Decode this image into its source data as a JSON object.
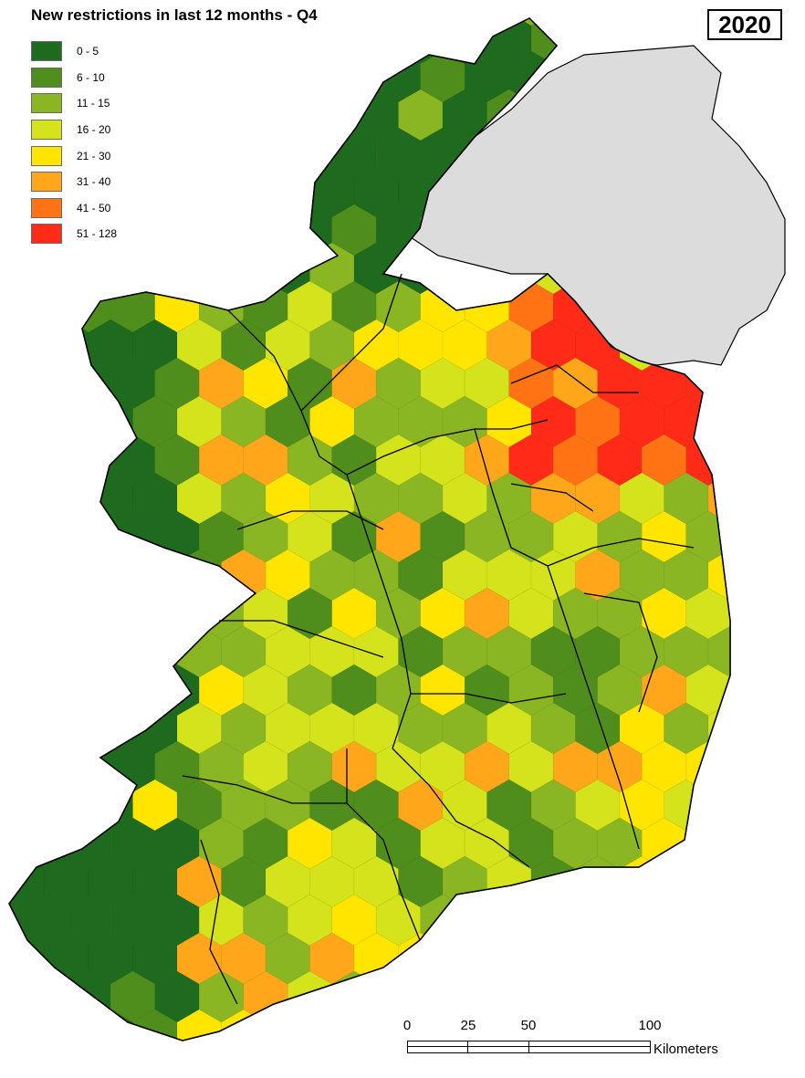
{
  "title": "New restrictions in last 12 months - Q4",
  "year": "2020",
  "colors": {
    "sea": "#ffffff",
    "other_land": "#dcdcdc",
    "border": "#000000"
  },
  "legend": [
    {
      "label": "0 - 5",
      "color": "#1e6a1e"
    },
    {
      "label": "6 - 10",
      "color": "#4f8e1c"
    },
    {
      "label": "11 - 15",
      "color": "#8bb624"
    },
    {
      "label": "16 - 20",
      "color": "#d4e31b"
    },
    {
      "label": "21 - 30",
      "color": "#ffe500"
    },
    {
      "label": "31 - 40",
      "color": "#ffa61a"
    },
    {
      "label": "41 - 50",
      "color": "#ff7315"
    },
    {
      "label": "51 - 128",
      "color": "#ff2a17"
    }
  ],
  "scale_bar": {
    "ticks": [
      "0",
      "25",
      "50",
      "100"
    ],
    "unit": "Kilometers"
  }
}
